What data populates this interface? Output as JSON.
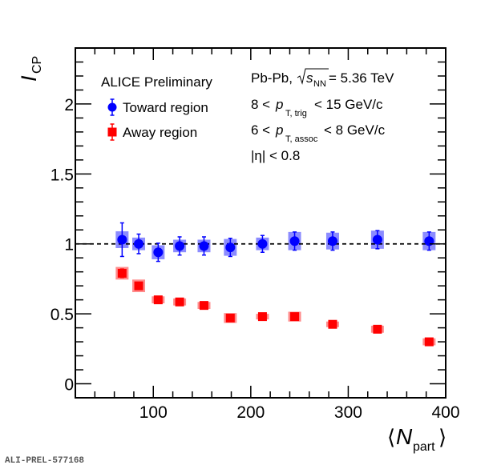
{
  "chart_data": {
    "type": "scatter",
    "title": "",
    "xlabel": "⟨N_part⟩",
    "xlabel_main": "N",
    "xlabel_sub": "part",
    "ylabel": "I_CP",
    "ylabel_main": "I",
    "ylabel_sub": "CP",
    "xlim": [
      20,
      400
    ],
    "ylim": [
      -0.1,
      2.4
    ],
    "xticks": [
      100,
      200,
      300,
      400
    ],
    "xtick_labels": [
      "100",
      "200",
      "300",
      "400"
    ],
    "yticks": [
      0,
      0.5,
      1,
      1.5,
      2
    ],
    "ytick_labels": [
      "0",
      "0.5",
      "1",
      "1.5",
      "2"
    ],
    "x_minor_step": 20,
    "y_minor_step": 0.1,
    "reference_line": {
      "y": 1,
      "style": "dashed"
    },
    "legend": {
      "position": "top-left",
      "header": "ALICE Preliminary",
      "entries": [
        "Toward region",
        "Away region"
      ]
    },
    "annotations": {
      "line1": {
        "pre": "Pb-Pb, ",
        "sqrt": "s",
        "sub": "NN",
        "post": " = 5.36 TeV"
      },
      "line2": {
        "pre": "8 < ",
        "var": "p",
        "sub": "T, trig",
        "post": " < 15 GeV/c"
      },
      "line3": {
        "pre": "6 < ",
        "var": "p",
        "sub": "T, assoc",
        "post": " < 8 GeV/c"
      },
      "line4": "|η| < 0.8"
    },
    "series": [
      {
        "name": "Toward region",
        "color": "#0000ff",
        "sys_color": "#6666ff",
        "marker": "circle",
        "x": [
          68,
          85,
          105,
          127,
          152,
          179,
          212,
          245,
          284,
          330,
          383
        ],
        "y": [
          1.03,
          1.0,
          0.94,
          0.985,
          0.985,
          0.975,
          1.0,
          1.02,
          1.02,
          1.03,
          1.02
        ],
        "stat_err": [
          0.12,
          0.07,
          0.065,
          0.065,
          0.065,
          0.065,
          0.06,
          0.065,
          0.065,
          0.065,
          0.065
        ],
        "sys_err": [
          0.06,
          0.045,
          0.05,
          0.045,
          0.045,
          0.06,
          0.045,
          0.065,
          0.06,
          0.065,
          0.065
        ]
      },
      {
        "name": "Away region",
        "color": "#ff0000",
        "sys_color": "#ff6666",
        "marker": "square",
        "x": [
          68,
          85,
          105,
          127,
          152,
          179,
          212,
          245,
          284,
          330,
          383
        ],
        "y": [
          0.79,
          0.7,
          0.6,
          0.585,
          0.56,
          0.47,
          0.48,
          0.48,
          0.425,
          0.39,
          0.3
        ],
        "stat_err": [
          0.03,
          0.025,
          0.01,
          0.01,
          0.01,
          0.01,
          0.01,
          0.01,
          0.01,
          0.01,
          0.01
        ],
        "sys_err": [
          0.045,
          0.045,
          0.025,
          0.025,
          0.025,
          0.035,
          0.02,
          0.035,
          0.02,
          0.025,
          0.025
        ]
      }
    ]
  },
  "footer": {
    "watermark": "ALI-PREL-577168"
  }
}
